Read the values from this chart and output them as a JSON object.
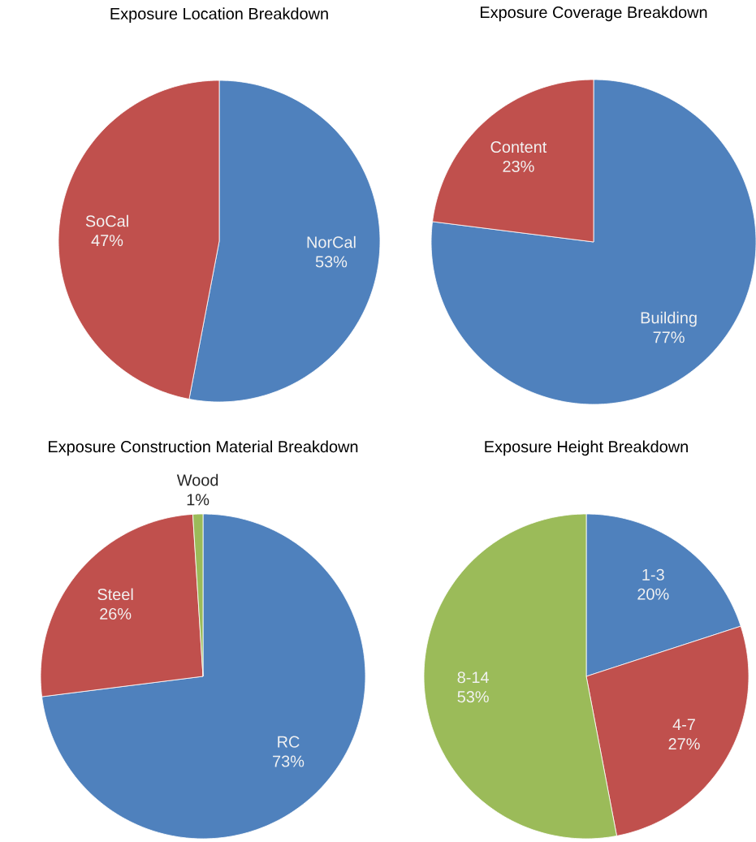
{
  "chart_data": [
    {
      "type": "pie",
      "title": "Exposure Location Breakdown",
      "categories": [
        "NorCal",
        "SoCal"
      ],
      "values": [
        53,
        47
      ],
      "value_labels": [
        "53%",
        "47%"
      ],
      "colors": [
        "#4f81bd",
        "#c0504d"
      ]
    },
    {
      "type": "pie",
      "title": "Exposure Coverage Breakdown",
      "categories": [
        "Building",
        "Content"
      ],
      "values": [
        77,
        23
      ],
      "value_labels": [
        "77%",
        "23%"
      ],
      "colors": [
        "#4f81bd",
        "#c0504d"
      ]
    },
    {
      "type": "pie",
      "title": "Exposure Construction Material Breakdown",
      "categories": [
        "RC",
        "Steel",
        "Wood"
      ],
      "values": [
        73,
        26,
        1
      ],
      "value_labels": [
        "73%",
        "26%",
        "1%"
      ],
      "colors": [
        "#4f81bd",
        "#c0504d",
        "#9bbb59"
      ]
    },
    {
      "type": "pie",
      "title": "Exposure Height Breakdown",
      "categories": [
        "1-3",
        "4-7",
        "8-14"
      ],
      "values": [
        20,
        27,
        53
      ],
      "value_labels": [
        "20%",
        "27%",
        "53%"
      ],
      "colors": [
        "#4f81bd",
        "#c0504d",
        "#9bbb59"
      ]
    }
  ]
}
